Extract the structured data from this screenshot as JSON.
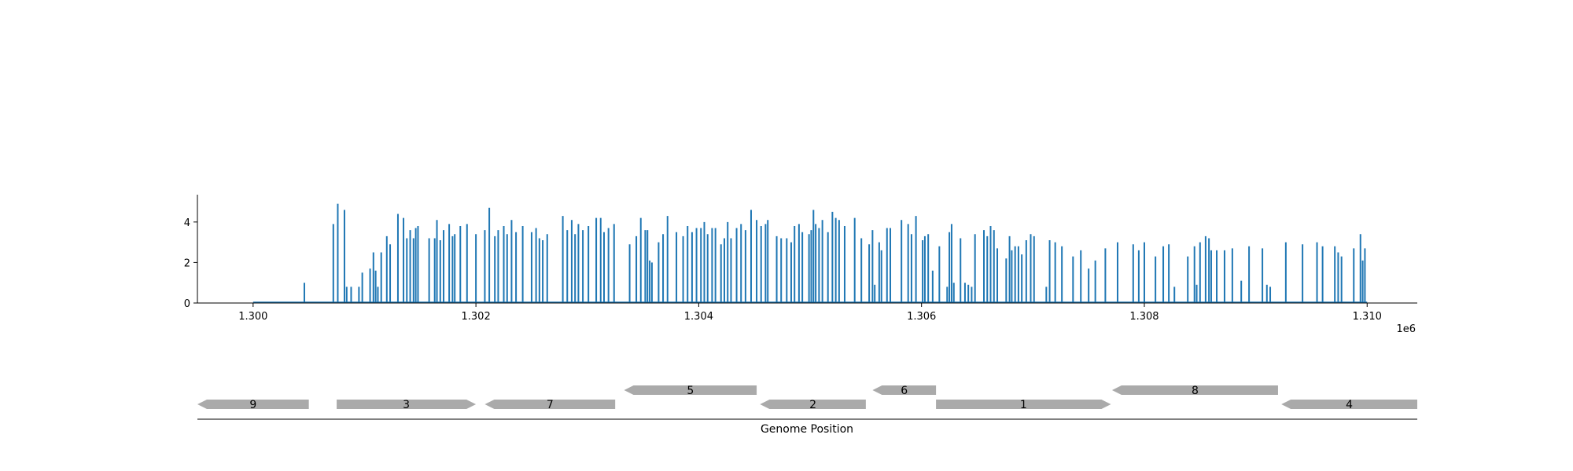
{
  "chart_data": [
    {
      "type": "bar",
      "title": "",
      "xlabel": "",
      "ylabel": "",
      "x_offset_label": "1e6",
      "xlim": [
        1299500,
        1310450
      ],
      "ylim": [
        0,
        5.35
      ],
      "xticks": [
        1300000,
        1302000,
        1304000,
        1306000,
        1308000,
        1310000
      ],
      "xtick_labels": [
        "1.300",
        "1.302",
        "1.304",
        "1.306",
        "1.308",
        "1.310"
      ],
      "yticks": [
        0,
        2,
        4
      ],
      "ytick_labels": [
        "0",
        "2",
        "4"
      ],
      "grid": false,
      "color": "#1f77b4",
      "baseline_range": [
        1300000,
        1310000
      ],
      "points": [
        [
          1300460,
          1.0
        ],
        [
          1300720,
          3.9
        ],
        [
          1300760,
          4.9
        ],
        [
          1300820,
          4.6
        ],
        [
          1300840,
          0.8
        ],
        [
          1300880,
          0.8
        ],
        [
          1300950,
          0.8
        ],
        [
          1300980,
          1.5
        ],
        [
          1301050,
          1.7
        ],
        [
          1301080,
          2.5
        ],
        [
          1301100,
          1.6
        ],
        [
          1301120,
          0.8
        ],
        [
          1301150,
          2.5
        ],
        [
          1301200,
          3.3
        ],
        [
          1301230,
          2.9
        ],
        [
          1301300,
          4.4
        ],
        [
          1301350,
          4.2
        ],
        [
          1301380,
          3.2
        ],
        [
          1301410,
          3.6
        ],
        [
          1301440,
          3.2
        ],
        [
          1301460,
          3.7
        ],
        [
          1301480,
          3.8
        ],
        [
          1301580,
          3.2
        ],
        [
          1301630,
          3.2
        ],
        [
          1301650,
          4.1
        ],
        [
          1301680,
          3.1
        ],
        [
          1301710,
          3.6
        ],
        [
          1301760,
          3.9
        ],
        [
          1301790,
          3.3
        ],
        [
          1301810,
          3.4
        ],
        [
          1301860,
          3.8
        ],
        [
          1301920,
          3.9
        ],
        [
          1302000,
          3.4
        ],
        [
          1302080,
          3.6
        ],
        [
          1302120,
          4.7
        ],
        [
          1302170,
          3.3
        ],
        [
          1302200,
          3.6
        ],
        [
          1302250,
          3.8
        ],
        [
          1302280,
          3.4
        ],
        [
          1302320,
          4.1
        ],
        [
          1302360,
          3.5
        ],
        [
          1302420,
          3.8
        ],
        [
          1302500,
          3.5
        ],
        [
          1302540,
          3.7
        ],
        [
          1302570,
          3.2
        ],
        [
          1302600,
          3.1
        ],
        [
          1302640,
          3.4
        ],
        [
          1302780,
          4.3
        ],
        [
          1302820,
          3.6
        ],
        [
          1302860,
          4.1
        ],
        [
          1302890,
          3.4
        ],
        [
          1302920,
          3.9
        ],
        [
          1302960,
          3.6
        ],
        [
          1303010,
          3.8
        ],
        [
          1303080,
          4.2
        ],
        [
          1303120,
          4.2
        ],
        [
          1303150,
          3.5
        ],
        [
          1303190,
          3.7
        ],
        [
          1303240,
          3.9
        ],
        [
          1303380,
          2.9
        ],
        [
          1303440,
          3.3
        ],
        [
          1303480,
          4.2
        ],
        [
          1303520,
          3.6
        ],
        [
          1303540,
          3.6
        ],
        [
          1303560,
          2.1
        ],
        [
          1303580,
          2.0
        ],
        [
          1303640,
          3.0
        ],
        [
          1303680,
          3.4
        ],
        [
          1303720,
          4.3
        ],
        [
          1303800,
          3.5
        ],
        [
          1303860,
          3.3
        ],
        [
          1303900,
          3.8
        ],
        [
          1303940,
          3.5
        ],
        [
          1303980,
          3.7
        ],
        [
          1304020,
          3.7
        ],
        [
          1304050,
          4.0
        ],
        [
          1304080,
          3.4
        ],
        [
          1304120,
          3.7
        ],
        [
          1304150,
          3.7
        ],
        [
          1304200,
          2.9
        ],
        [
          1304230,
          3.2
        ],
        [
          1304260,
          4.0
        ],
        [
          1304290,
          3.2
        ],
        [
          1304340,
          3.7
        ],
        [
          1304380,
          3.9
        ],
        [
          1304420,
          3.6
        ],
        [
          1304470,
          4.6
        ],
        [
          1304520,
          4.1
        ],
        [
          1304560,
          3.8
        ],
        [
          1304600,
          3.9
        ],
        [
          1304620,
          4.1
        ],
        [
          1304700,
          3.3
        ],
        [
          1304740,
          3.2
        ],
        [
          1304790,
          3.2
        ],
        [
          1304830,
          3.0
        ],
        [
          1304860,
          3.8
        ],
        [
          1304900,
          3.9
        ],
        [
          1304930,
          3.5
        ],
        [
          1304990,
          3.4
        ],
        [
          1305010,
          3.6
        ],
        [
          1305030,
          4.6
        ],
        [
          1305050,
          3.9
        ],
        [
          1305080,
          3.7
        ],
        [
          1305110,
          4.1
        ],
        [
          1305160,
          3.5
        ],
        [
          1305200,
          4.5
        ],
        [
          1305230,
          4.2
        ],
        [
          1305260,
          4.1
        ],
        [
          1305310,
          3.8
        ],
        [
          1305400,
          4.2
        ],
        [
          1305460,
          3.2
        ],
        [
          1305530,
          2.9
        ],
        [
          1305560,
          3.6
        ],
        [
          1305580,
          0.9
        ],
        [
          1305620,
          3.0
        ],
        [
          1305640,
          2.6
        ],
        [
          1305690,
          3.7
        ],
        [
          1305720,
          3.7
        ],
        [
          1305820,
          4.1
        ],
        [
          1305880,
          3.9
        ],
        [
          1305910,
          3.4
        ],
        [
          1305950,
          4.3
        ],
        [
          1306010,
          3.1
        ],
        [
          1306030,
          3.3
        ],
        [
          1306060,
          3.4
        ],
        [
          1306100,
          1.6
        ],
        [
          1306160,
          2.8
        ],
        [
          1306230,
          0.8
        ],
        [
          1306250,
          3.5
        ],
        [
          1306270,
          3.9
        ],
        [
          1306290,
          1.0
        ],
        [
          1306350,
          3.2
        ],
        [
          1306390,
          1.0
        ],
        [
          1306420,
          0.9
        ],
        [
          1306450,
          0.8
        ],
        [
          1306480,
          3.4
        ],
        [
          1306560,
          3.6
        ],
        [
          1306590,
          3.3
        ],
        [
          1306620,
          3.8
        ],
        [
          1306650,
          3.6
        ],
        [
          1306680,
          2.7
        ],
        [
          1306760,
          2.2
        ],
        [
          1306790,
          3.3
        ],
        [
          1306810,
          2.6
        ],
        [
          1306840,
          2.8
        ],
        [
          1306870,
          2.8
        ],
        [
          1306900,
          2.4
        ],
        [
          1306940,
          3.1
        ],
        [
          1306980,
          3.4
        ],
        [
          1307010,
          3.3
        ],
        [
          1307120,
          0.8
        ],
        [
          1307150,
          3.1
        ],
        [
          1307200,
          3.0
        ],
        [
          1307260,
          2.8
        ],
        [
          1307360,
          2.3
        ],
        [
          1307430,
          2.6
        ],
        [
          1307500,
          1.7
        ],
        [
          1307560,
          2.1
        ],
        [
          1307650,
          2.7
        ],
        [
          1307760,
          3.0
        ],
        [
          1307900,
          2.9
        ],
        [
          1307950,
          2.6
        ],
        [
          1308000,
          3.0
        ],
        [
          1308100,
          2.3
        ],
        [
          1308170,
          2.8
        ],
        [
          1308220,
          2.9
        ],
        [
          1308270,
          0.8
        ],
        [
          1308390,
          2.3
        ],
        [
          1308450,
          2.8
        ],
        [
          1308470,
          0.9
        ],
        [
          1308500,
          3.0
        ],
        [
          1308550,
          3.3
        ],
        [
          1308580,
          3.2
        ],
        [
          1308600,
          2.6
        ],
        [
          1308650,
          2.6
        ],
        [
          1308720,
          2.6
        ],
        [
          1308790,
          2.7
        ],
        [
          1308870,
          1.1
        ],
        [
          1308940,
          2.8
        ],
        [
          1309060,
          2.7
        ],
        [
          1309100,
          0.9
        ],
        [
          1309130,
          0.8
        ],
        [
          1309270,
          3.0
        ],
        [
          1309420,
          2.9
        ],
        [
          1309550,
          3.0
        ],
        [
          1309600,
          2.8
        ],
        [
          1309710,
          2.8
        ],
        [
          1309740,
          2.5
        ],
        [
          1309770,
          2.3
        ],
        [
          1309880,
          2.7
        ],
        [
          1309940,
          3.4
        ],
        [
          1309960,
          2.1
        ],
        [
          1309980,
          2.7
        ]
      ]
    },
    {
      "type": "gene-map",
      "xlabel": "Genome Position",
      "color": "#aaaaaa",
      "features": [
        {
          "label": "9",
          "start": 1299500,
          "end": 1300500,
          "strand": "-",
          "track": 0
        },
        {
          "label": "3",
          "start": 1300750,
          "end": 1302000,
          "strand": "+",
          "track": 0
        },
        {
          "label": "7",
          "start": 1302080,
          "end": 1303250,
          "strand": "-",
          "track": 0
        },
        {
          "label": "5",
          "start": 1303330,
          "end": 1304520,
          "strand": "-",
          "track": 1
        },
        {
          "label": "2",
          "start": 1304550,
          "end": 1305500,
          "strand": "-",
          "track": 0
        },
        {
          "label": "6",
          "start": 1305560,
          "end": 1306130,
          "strand": "-",
          "track": 1
        },
        {
          "label": "1",
          "start": 1306130,
          "end": 1307700,
          "strand": "+",
          "track": 0
        },
        {
          "label": "8",
          "start": 1307710,
          "end": 1309200,
          "strand": "-",
          "track": 1
        },
        {
          "label": "4",
          "start": 1309230,
          "end": 1310450,
          "strand": "-",
          "track": 0
        }
      ]
    }
  ]
}
